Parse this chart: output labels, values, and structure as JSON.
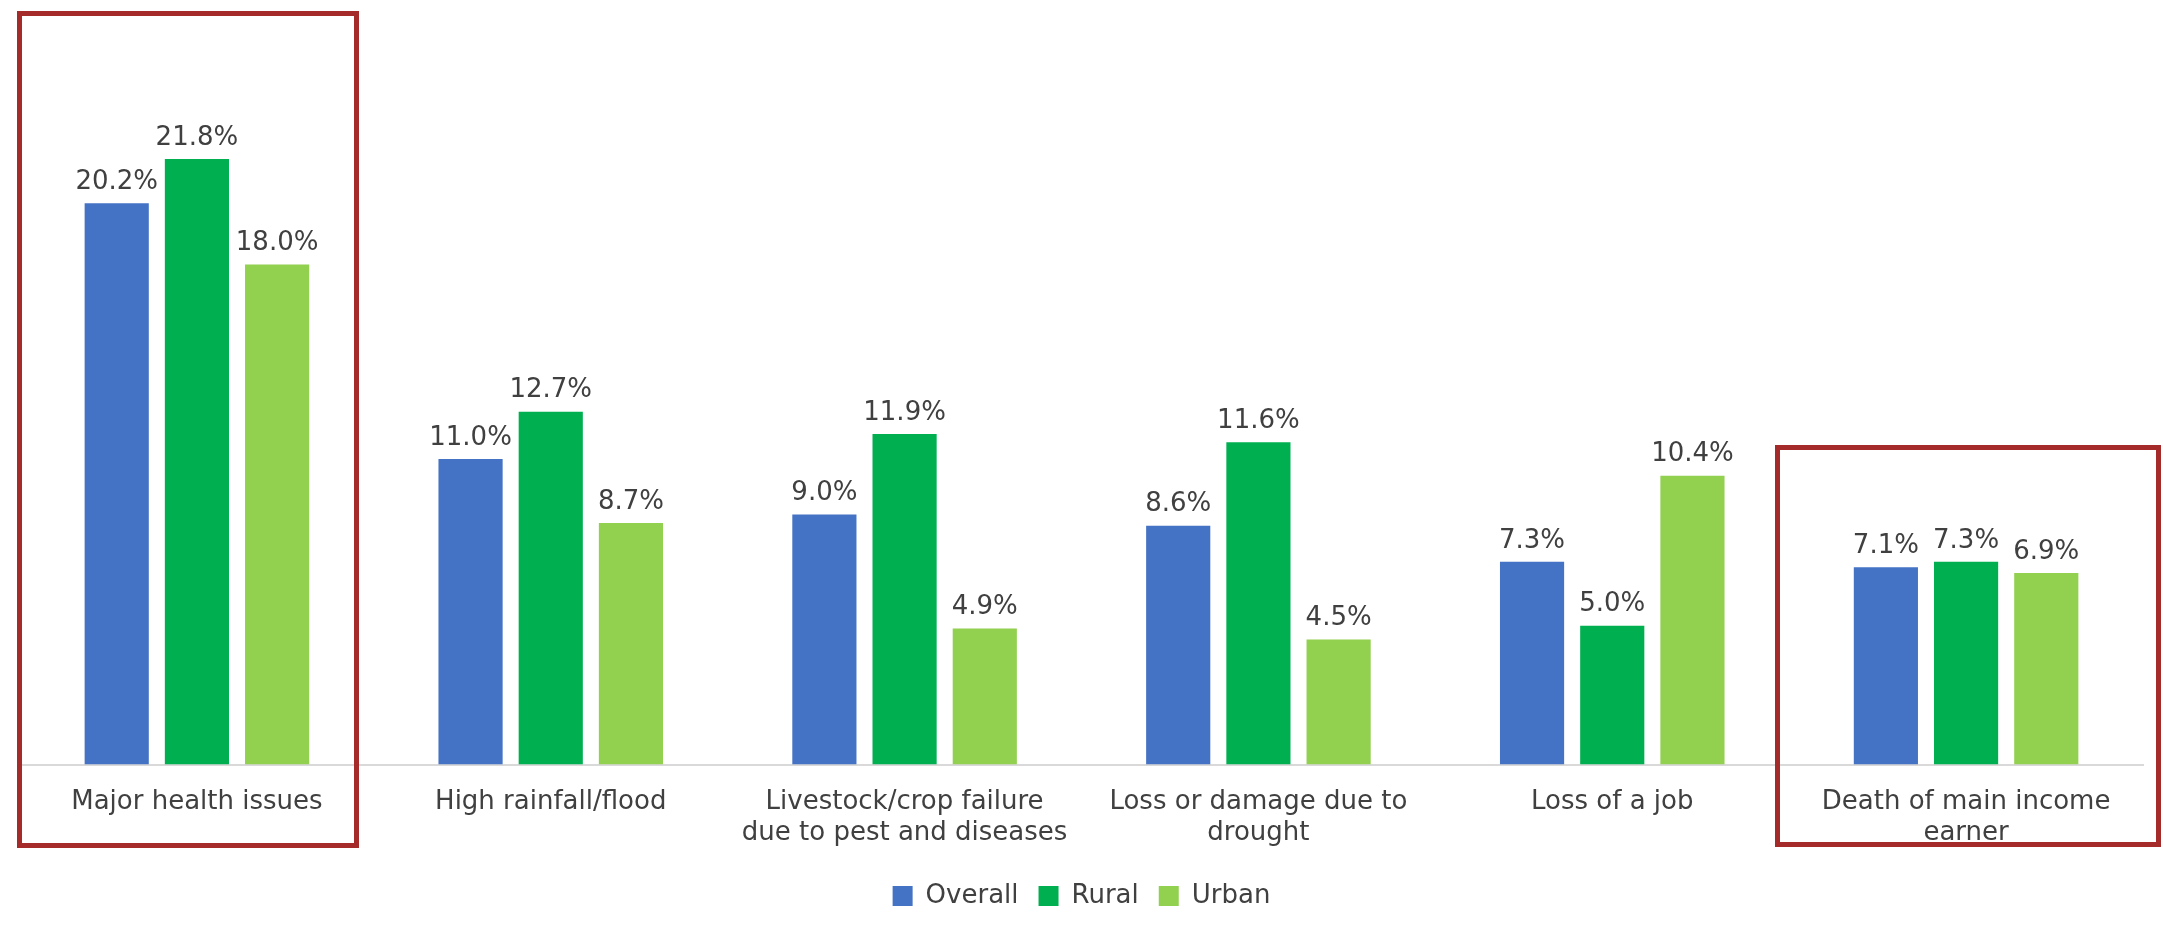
{
  "chart_data": {
    "type": "bar",
    "categories": [
      "Major health issues",
      "High rainfall/flood",
      "Livestock/crop failure due to pest and diseases",
      "Loss or damage due to drought",
      "Loss of a job",
      "Death of main income earner"
    ],
    "series": [
      {
        "name": "Overall",
        "color": "#4472c4",
        "values": [
          20.2,
          11.0,
          9.0,
          8.6,
          7.3,
          7.1
        ],
        "value_labels": [
          "20.2%",
          "11.0%",
          "9.0%",
          "8.6%",
          "7.3%",
          "7.1%"
        ]
      },
      {
        "name": "Rural",
        "color": "#00b050",
        "values": [
          21.8,
          12.7,
          11.9,
          11.6,
          5.0,
          7.3
        ],
        "value_labels": [
          "21.8%",
          "12.7%",
          "11.9%",
          "11.6%",
          "5.0%",
          "7.3%"
        ]
      },
      {
        "name": "Urban",
        "color": "#92d050",
        "values": [
          18.0,
          8.7,
          4.9,
          4.5,
          10.4,
          6.9
        ],
        "value_labels": [
          "18.0%",
          "8.7%",
          "4.9%",
          "4.5%",
          "10.4%",
          "6.9%"
        ]
      }
    ],
    "legend": "bottom",
    "grid": false
  }
}
